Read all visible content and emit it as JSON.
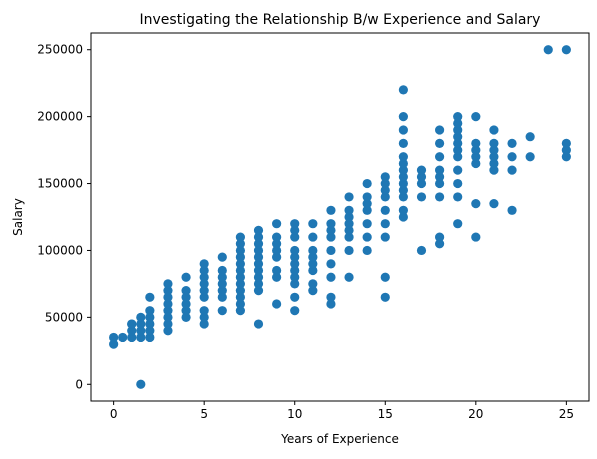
{
  "chart_data": {
    "type": "scatter",
    "title": "Investigating the Relationship B/w Experience and Salary",
    "xlabel": "Years of Experience",
    "ylabel": "Salary",
    "xlim": [
      -1.25,
      26.25
    ],
    "ylim": [
      -12500,
      262500
    ],
    "xticks": [
      0,
      5,
      10,
      15,
      20,
      25
    ],
    "yticks": [
      0,
      50000,
      100000,
      150000,
      200000,
      250000
    ],
    "grid": false,
    "marker_color": "#1f77b4",
    "x": [
      0,
      0,
      0.5,
      1,
      1,
      1,
      1,
      1.5,
      1.5,
      1.5,
      1.5,
      1.5,
      2,
      2,
      2,
      2,
      2,
      2,
      3,
      3,
      3,
      3,
      3,
      3,
      3,
      3,
      4,
      4,
      4,
      4,
      4,
      4,
      5,
      5,
      5,
      5,
      5,
      5,
      5,
      5,
      5,
      6,
      6,
      6,
      6,
      6,
      6,
      6,
      7,
      7,
      7,
      7,
      7,
      7,
      7,
      7,
      7,
      7,
      7,
      7,
      8,
      8,
      8,
      8,
      8,
      8,
      8,
      8,
      8,
      8,
      8,
      9,
      9,
      9,
      9,
      9,
      9,
      9,
      9,
      10,
      10,
      10,
      10,
      10,
      10,
      10,
      10,
      10,
      10,
      10,
      11,
      11,
      11,
      11,
      11,
      11,
      11,
      11,
      12,
      12,
      12,
      12,
      12,
      12,
      12,
      12,
      12,
      13,
      13,
      13,
      13,
      13,
      13,
      13,
      13,
      14,
      14,
      14,
      14,
      14,
      14,
      14,
      15,
      15,
      15,
      15,
      15,
      15,
      15,
      15,
      15,
      16,
      16,
      16,
      16,
      16,
      16,
      16,
      16,
      16,
      16,
      16,
      16,
      16,
      17,
      17,
      17,
      17,
      17,
      18,
      18,
      18,
      18,
      18,
      18,
      18,
      18,
      18,
      19,
      19,
      19,
      19,
      19,
      19,
      19,
      19,
      19,
      19,
      19,
      20,
      20,
      20,
      20,
      20,
      20,
      20,
      21,
      21,
      21,
      21,
      21,
      21,
      21,
      22,
      22,
      22,
      22,
      23,
      23,
      24,
      25,
      25,
      25,
      25
    ],
    "y": [
      30000,
      35000,
      35000,
      35000,
      40000,
      45000,
      45000,
      0,
      35000,
      40000,
      45000,
      50000,
      35000,
      40000,
      45000,
      50000,
      55000,
      65000,
      40000,
      45000,
      50000,
      55000,
      60000,
      65000,
      70000,
      75000,
      50000,
      55000,
      60000,
      65000,
      70000,
      80000,
      45000,
      50000,
      55000,
      65000,
      70000,
      75000,
      80000,
      85000,
      90000,
      55000,
      65000,
      70000,
      75000,
      80000,
      85000,
      95000,
      55000,
      60000,
      65000,
      70000,
      75000,
      80000,
      85000,
      90000,
      95000,
      100000,
      105000,
      110000,
      45000,
      70000,
      75000,
      80000,
      85000,
      90000,
      95000,
      100000,
      105000,
      110000,
      115000,
      60000,
      80000,
      85000,
      95000,
      100000,
      105000,
      110000,
      120000,
      55000,
      65000,
      75000,
      80000,
      85000,
      90000,
      95000,
      100000,
      110000,
      115000,
      120000,
      70000,
      75000,
      85000,
      90000,
      95000,
      100000,
      110000,
      120000,
      60000,
      65000,
      80000,
      90000,
      100000,
      110000,
      115000,
      120000,
      130000,
      80000,
      100000,
      110000,
      115000,
      120000,
      125000,
      130000,
      140000,
      100000,
      110000,
      120000,
      130000,
      135000,
      140000,
      150000,
      65000,
      80000,
      110000,
      120000,
      130000,
      140000,
      145000,
      150000,
      155000,
      125000,
      130000,
      140000,
      145000,
      150000,
      155000,
      160000,
      165000,
      170000,
      180000,
      190000,
      200000,
      220000,
      100000,
      140000,
      150000,
      155000,
      160000,
      105000,
      110000,
      140000,
      150000,
      155000,
      160000,
      170000,
      180000,
      190000,
      120000,
      140000,
      150000,
      160000,
      170000,
      175000,
      180000,
      185000,
      190000,
      195000,
      200000,
      110000,
      135000,
      165000,
      170000,
      175000,
      180000,
      200000,
      135000,
      160000,
      165000,
      170000,
      175000,
      180000,
      190000,
      130000,
      160000,
      170000,
      180000,
      170000,
      185000,
      250000,
      170000,
      175000,
      180000,
      250000
    ]
  }
}
